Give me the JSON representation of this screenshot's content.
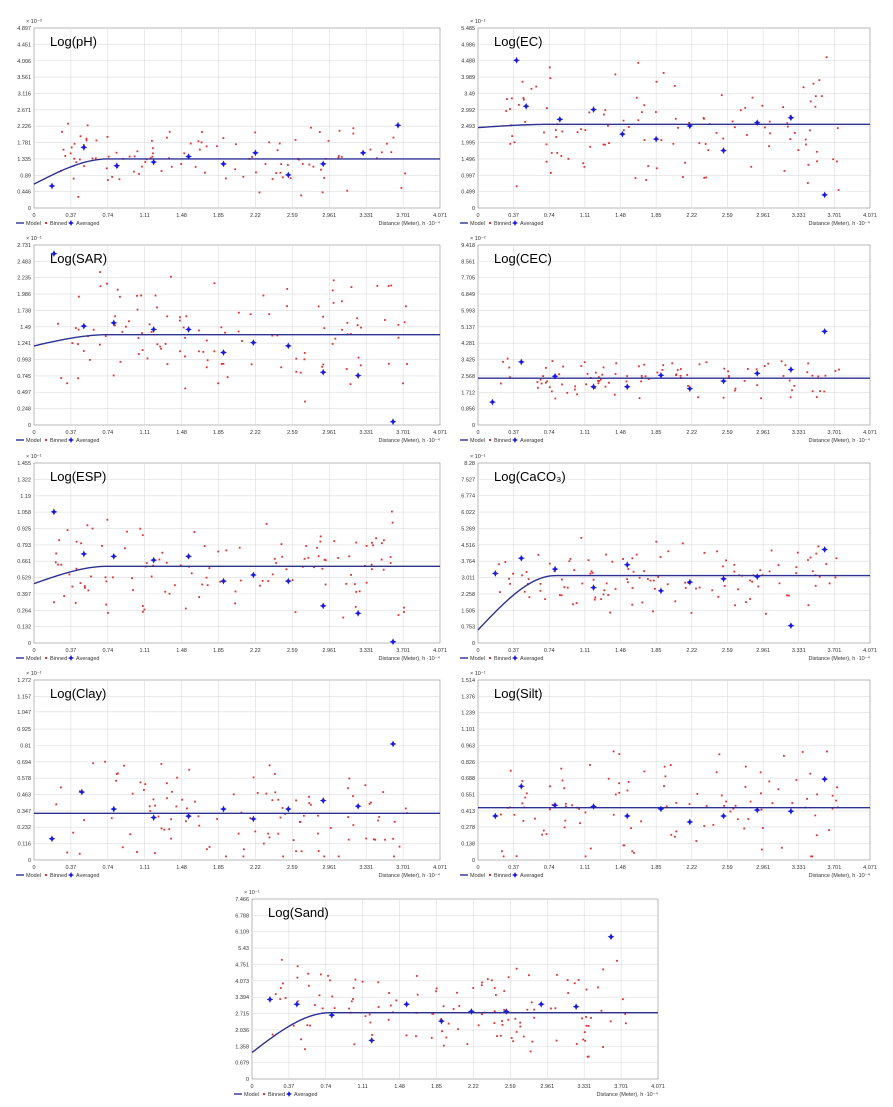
{
  "figure": {
    "legend": {
      "model": "Model",
      "binned": "Binned",
      "averaged": "Averaged"
    },
    "colors": {
      "model": "#2e3192",
      "binned": "#e0302e",
      "averaged": "#1a1adb"
    }
  },
  "chart_data": [
    {
      "type": "scatter",
      "title": "Log(pH)",
      "y_exponent": "× 10⁻³",
      "xlabel": "Distance (Meter), h ·10⁻⁴",
      "x_ticks": [
        "0",
        "0.37",
        "0.74",
        "1.11",
        "1.48",
        "1.85",
        "2.22",
        "2.59",
        "2.961",
        "3.331",
        "3.701",
        "4.071"
      ],
      "y_ticks": [
        "0.446",
        "0.89",
        "1.335",
        "1.781",
        "2.226",
        "2.671",
        "3.116",
        "3.561",
        "4.006",
        "4.451",
        "4.897"
      ],
      "xlim": [
        0,
        4.071
      ],
      "ylim": [
        0,
        4.897
      ],
      "model": {
        "nugget": 0.65,
        "sill": 1.335,
        "range": 0.74
      },
      "averaged": [
        [
          0.18,
          0.6
        ],
        [
          0.5,
          1.65
        ],
        [
          0.83,
          1.15
        ],
        [
          1.2,
          1.25
        ],
        [
          1.55,
          1.4
        ],
        [
          1.9,
          1.2
        ],
        [
          2.22,
          1.5
        ],
        [
          2.55,
          0.9
        ],
        [
          2.9,
          1.2
        ],
        [
          3.3,
          1.5
        ],
        [
          3.65,
          2.25
        ]
      ],
      "binned_seed": 11,
      "binned_count": 110,
      "binned_spread": 1.1
    },
    {
      "type": "scatter",
      "title": "Log(EC)",
      "y_exponent": "× 10⁻¹",
      "xlabel": "Distance (Meter), h ·10⁻⁴",
      "x_ticks": [
        "0",
        "0.37",
        "0.74",
        "1.11",
        "1.48",
        "1.85",
        "2.22",
        "2.59",
        "2.961",
        "3.331",
        "3.701",
        "4.071"
      ],
      "y_ticks": [
        "0.499",
        "0.997",
        "1.496",
        "1.995",
        "2.493",
        "2.992",
        "3.49",
        "3.989",
        "4.488",
        "4.986",
        "5.485"
      ],
      "xlim": [
        0,
        4.071
      ],
      "ylim": [
        0,
        5.485
      ],
      "model": {
        "nugget": 2.45,
        "sill": 2.55,
        "range": 0.74
      },
      "averaged": [
        [
          0.4,
          4.5
        ],
        [
          0.5,
          3.1
        ],
        [
          0.85,
          2.7
        ],
        [
          1.2,
          3.0
        ],
        [
          1.5,
          2.25
        ],
        [
          1.85,
          2.1
        ],
        [
          2.2,
          2.5
        ],
        [
          2.55,
          1.75
        ],
        [
          2.9,
          2.6
        ],
        [
          3.25,
          2.75
        ],
        [
          3.6,
          0.4
        ]
      ],
      "binned_seed": 23,
      "binned_count": 120,
      "binned_spread": 2.2
    },
    {
      "type": "scatter",
      "title": "Log(SAR)",
      "y_exponent": "× 10⁻¹",
      "xlabel": "Distance (Meter), h ·10⁻⁴",
      "x_ticks": [
        "0",
        "0.37",
        "0.74",
        "1.11",
        "1.48",
        "1.85",
        "2.22",
        "2.59",
        "2.961",
        "3.331",
        "3.701",
        "4.071"
      ],
      "y_ticks": [
        "0.248",
        "0.497",
        "0.745",
        "0.993",
        "1.241",
        "1.49",
        "1.738",
        "1.986",
        "2.235",
        "2.483",
        "2.731"
      ],
      "xlim": [
        0,
        4.071
      ],
      "ylim": [
        0,
        2.731
      ],
      "model": {
        "nugget": 1.2,
        "sill": 1.37,
        "range": 0.74
      },
      "averaged": [
        [
          0.2,
          2.6
        ],
        [
          0.5,
          1.5
        ],
        [
          0.8,
          1.55
        ],
        [
          1.2,
          1.45
        ],
        [
          1.55,
          1.45
        ],
        [
          1.9,
          1.1
        ],
        [
          2.2,
          1.25
        ],
        [
          2.55,
          1.2
        ],
        [
          2.9,
          0.8
        ],
        [
          3.25,
          0.75
        ],
        [
          3.6,
          0.05
        ]
      ],
      "binned_seed": 37,
      "binned_count": 120,
      "binned_spread": 1.1
    },
    {
      "type": "scatter",
      "title": "Log(CEC)",
      "y_exponent": "× 10⁻²",
      "xlabel": "Distance (Meter), h ·10⁻⁴",
      "x_ticks": [
        "0",
        "0.37",
        "0.74",
        "1.11",
        "1.48",
        "1.85",
        "2.22",
        "2.59",
        "2.961",
        "3.331",
        "3.701",
        "4.071"
      ],
      "y_ticks": [
        "0.856",
        "1.712",
        "2.568",
        "3.425",
        "4.281",
        "5.137",
        "5.993",
        "6.849",
        "7.705",
        "8.561",
        "9.418"
      ],
      "xlim": [
        0,
        4.071
      ],
      "ylim": [
        0,
        9.418
      ],
      "model": {
        "nugget": 2.45,
        "sill": 2.45,
        "range": 0.74
      },
      "averaged": [
        [
          0.15,
          1.2
        ],
        [
          0.45,
          3.3
        ],
        [
          0.8,
          2.55
        ],
        [
          1.2,
          2.0
        ],
        [
          1.55,
          2.0
        ],
        [
          1.9,
          2.6
        ],
        [
          2.2,
          1.9
        ],
        [
          2.55,
          2.3
        ],
        [
          2.9,
          2.7
        ],
        [
          3.25,
          2.9
        ],
        [
          3.6,
          4.9
        ]
      ],
      "binned_seed": 51,
      "binned_count": 100,
      "binned_spread": 1.3
    },
    {
      "type": "scatter",
      "title": "Log(ESP)",
      "y_exponent": "× 10⁻¹",
      "xlabel": "Distance (Meter), h ·10⁻⁴",
      "x_ticks": [
        "0",
        "0.37",
        "0.74",
        "1.11",
        "1.48",
        "1.85",
        "2.22",
        "2.59",
        "2.961",
        "3.331",
        "3.701",
        "4.071"
      ],
      "y_ticks": [
        "0.132",
        "0.264",
        "0.397",
        "0.529",
        "0.661",
        "0.793",
        "0.925",
        "1.058",
        "1.19",
        "1.322",
        "1.455"
      ],
      "xlim": [
        0,
        4.071
      ],
      "ylim": [
        0,
        1.455
      ],
      "model": {
        "nugget": 0.48,
        "sill": 0.62,
        "range": 0.74
      },
      "averaged": [
        [
          0.2,
          1.06
        ],
        [
          0.5,
          0.72
        ],
        [
          0.8,
          0.7
        ],
        [
          1.2,
          0.67
        ],
        [
          1.55,
          0.7
        ],
        [
          1.9,
          0.5
        ],
        [
          2.2,
          0.55
        ],
        [
          2.55,
          0.5
        ],
        [
          2.9,
          0.3
        ],
        [
          3.25,
          0.24
        ],
        [
          3.6,
          0.01
        ]
      ],
      "binned_seed": 67,
      "binned_count": 120,
      "binned_spread": 0.5
    },
    {
      "type": "scatter",
      "title": "Log(CaCO₃)",
      "y_exponent": "× 10⁻¹",
      "xlabel": "Distance (Meter), h ·10⁻⁴",
      "x_ticks": [
        "0",
        "0.37",
        "0.74",
        "1.11",
        "1.48",
        "1.85",
        "2.22",
        "2.59",
        "2.961",
        "3.331",
        "3.701",
        "4.071"
      ],
      "y_ticks": [
        "0.753",
        "1.505",
        "2.258",
        "3.011",
        "3.764",
        "4.516",
        "5.269",
        "6.022",
        "6.774",
        "7.527",
        "8.28"
      ],
      "xlim": [
        0,
        4.071
      ],
      "ylim": [
        0,
        8.28
      ],
      "model": {
        "nugget": 0.6,
        "sill": 3.1,
        "range": 0.8
      },
      "averaged": [
        [
          0.18,
          3.2
        ],
        [
          0.45,
          3.9
        ],
        [
          0.8,
          3.4
        ],
        [
          1.2,
          2.55
        ],
        [
          1.55,
          3.6
        ],
        [
          1.9,
          2.4
        ],
        [
          2.2,
          2.8
        ],
        [
          2.55,
          2.95
        ],
        [
          2.9,
          3.05
        ],
        [
          3.25,
          0.8
        ],
        [
          3.6,
          4.3
        ]
      ],
      "binned_seed": 79,
      "binned_count": 120,
      "binned_spread": 2.0
    },
    {
      "type": "scatter",
      "title": "Log(Clay)",
      "y_exponent": "× 10⁻¹",
      "xlabel": "Distance (Meter), h ·10⁻⁴",
      "x_ticks": [
        "0",
        "0.37",
        "0.74",
        "1.11",
        "1.48",
        "1.85",
        "2.22",
        "2.59",
        "2.961",
        "3.331",
        "3.701",
        "4.071"
      ],
      "y_ticks": [
        "0.116",
        "0.232",
        "0.347",
        "0.463",
        "0.578",
        "0.694",
        "0.81",
        "0.925",
        "1.047",
        "1.157",
        "1.272"
      ],
      "xlim": [
        0,
        4.071
      ],
      "ylim": [
        0,
        1.272
      ],
      "model": {
        "nugget": 0.33,
        "sill": 0.33,
        "range": 0.74
      },
      "averaged": [
        [
          0.18,
          0.15
        ],
        [
          0.48,
          0.48
        ],
        [
          0.8,
          0.36
        ],
        [
          1.2,
          0.3
        ],
        [
          1.55,
          0.31
        ],
        [
          1.9,
          0.36
        ],
        [
          2.2,
          0.29
        ],
        [
          2.55,
          0.36
        ],
        [
          2.9,
          0.42
        ],
        [
          3.25,
          0.38
        ],
        [
          3.6,
          0.82
        ]
      ],
      "binned_seed": 89,
      "binned_count": 110,
      "binned_spread": 0.45
    },
    {
      "type": "scatter",
      "title": "Log(Silt)",
      "y_exponent": "× 10⁻¹",
      "xlabel": "Distance (Meter), h ·10⁻⁴",
      "x_ticks": [
        "0",
        "0.37",
        "0.74",
        "1.11",
        "1.48",
        "1.85",
        "2.22",
        "2.59",
        "2.961",
        "3.331",
        "3.701",
        "4.071"
      ],
      "y_ticks": [
        "0.138",
        "0.278",
        "0.413",
        "0.551",
        "0.688",
        "0.826",
        "0.963",
        "1.101",
        "1.239",
        "1.376",
        "1.514"
      ],
      "xlim": [
        0,
        4.071
      ],
      "ylim": [
        0,
        1.514
      ],
      "model": {
        "nugget": 0.44,
        "sill": 0.44,
        "range": 0.74
      },
      "averaged": [
        [
          0.18,
          0.37
        ],
        [
          0.45,
          0.62
        ],
        [
          0.8,
          0.46
        ],
        [
          1.2,
          0.45
        ],
        [
          1.55,
          0.37
        ],
        [
          1.9,
          0.43
        ],
        [
          2.2,
          0.32
        ],
        [
          2.55,
          0.37
        ],
        [
          2.9,
          0.42
        ],
        [
          3.25,
          0.41
        ],
        [
          3.6,
          0.68
        ]
      ],
      "binned_seed": 97,
      "binned_count": 110,
      "binned_spread": 0.5
    },
    {
      "type": "scatter",
      "title": "Log(Sand)",
      "y_exponent": "× 10⁻¹",
      "xlabel": "Distance (Meter), h ·10⁻⁴",
      "x_ticks": [
        "0",
        "0.37",
        "0.74",
        "1.11",
        "1.48",
        "1.85",
        "2.22",
        "2.59",
        "2.961",
        "3.331",
        "3.701",
        "4.071"
      ],
      "y_ticks": [
        "0.679",
        "1.358",
        "2.036",
        "2.715",
        "3.394",
        "4.073",
        "4.751",
        "5.43",
        "6.109",
        "6.788",
        "7.466"
      ],
      "xlim": [
        0,
        4.071
      ],
      "ylim": [
        0,
        7.466
      ],
      "model": {
        "nugget": 1.1,
        "sill": 2.75,
        "range": 0.78
      },
      "averaged": [
        [
          0.18,
          3.3
        ],
        [
          0.45,
          3.1
        ],
        [
          0.8,
          2.65
        ],
        [
          1.2,
          1.6
        ],
        [
          1.55,
          3.1
        ],
        [
          1.9,
          2.4
        ],
        [
          2.2,
          2.8
        ],
        [
          2.55,
          2.8
        ],
        [
          2.9,
          3.1
        ],
        [
          3.25,
          3.0
        ],
        [
          3.6,
          5.9
        ]
      ],
      "binned_seed": 103,
      "binned_count": 130,
      "binned_spread": 2.3
    }
  ]
}
